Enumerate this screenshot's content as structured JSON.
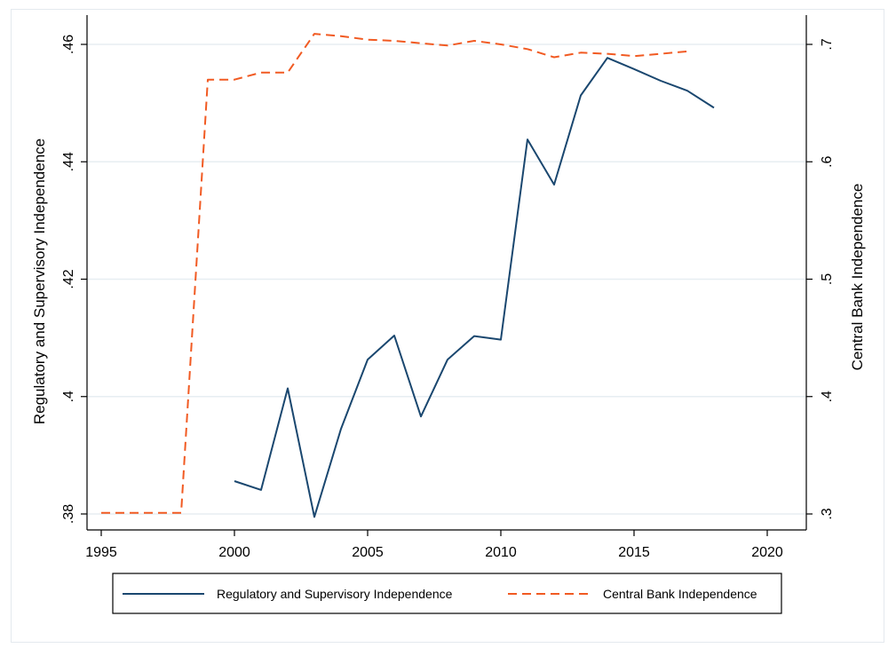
{
  "chart_data": {
    "type": "line",
    "xlabel": "",
    "ylabel": "Regulatory and Supervisory Independence",
    "y2label": "Central Bank Independence",
    "xlim": [
      1995,
      2020
    ],
    "xticks": [
      1995,
      2000,
      2005,
      2010,
      2015,
      2020
    ],
    "ylim": [
      0.38,
      0.46
    ],
    "yticks": [
      0.38,
      0.4,
      0.42,
      0.44,
      0.46
    ],
    "ytick_labels": [
      ".38",
      ".4",
      ".42",
      ".44",
      ".46"
    ],
    "y2lim": [
      0.3,
      0.7
    ],
    "y2ticks": [
      0.3,
      0.4,
      0.5,
      0.6,
      0.7
    ],
    "y2tick_labels": [
      ".3",
      ".4",
      ".5",
      ".6",
      ".7"
    ],
    "grid": true,
    "legend_position": "bottom",
    "series": [
      {
        "name": "Regulatory and Supervisory Independence",
        "axis": "left",
        "style": "solid",
        "color": "#1a476f",
        "x": [
          2000,
          2001,
          2002,
          2003,
          2004,
          2005,
          2006,
          2007,
          2008,
          2009,
          2010,
          2011,
          2012,
          2013,
          2014,
          2015,
          2016,
          2017,
          2018
        ],
        "y": [
          0.3856,
          0.3841,
          0.4014,
          0.3795,
          0.3945,
          0.4063,
          0.4104,
          0.3966,
          0.4063,
          0.4103,
          0.4097,
          0.4438,
          0.4361,
          0.4513,
          0.4577,
          0.4558,
          0.4538,
          0.4521,
          0.4492
        ]
      },
      {
        "name": "Central Bank Independence",
        "axis": "right",
        "style": "dashed",
        "color": "#f15a22",
        "x": [
          1995,
          1996,
          1997,
          1998,
          1999,
          2000,
          2001,
          2002,
          2003,
          2004,
          2005,
          2006,
          2007,
          2008,
          2009,
          2010,
          2011,
          2012,
          2013,
          2014,
          2015,
          2016,
          2017
        ],
        "y": [
          0.301,
          0.301,
          0.301,
          0.301,
          0.67,
          0.67,
          0.676,
          0.676,
          0.709,
          0.707,
          0.704,
          0.703,
          0.701,
          0.699,
          0.703,
          0.7,
          0.696,
          0.689,
          0.693,
          0.692,
          0.69,
          0.692,
          0.694
        ]
      }
    ]
  }
}
